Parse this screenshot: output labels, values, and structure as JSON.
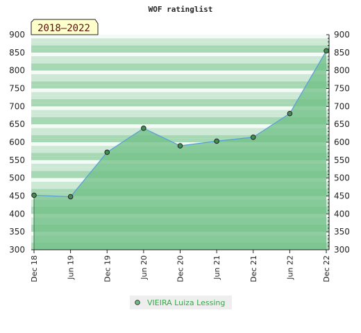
{
  "colors": {
    "line": "#5aa0d8",
    "area": "#6fbf86",
    "band_light": "#f4faf5",
    "band_mid": "#cde9d5",
    "band_dark": "#a7d8b4",
    "marker": "#3f8f53",
    "badge_fill": "#ffffcc",
    "legend_text": "#3aa54a"
  },
  "chart_data": {
    "type": "area",
    "title": "WOF ratinglist",
    "badge": "2018–2022",
    "categories": [
      "Dec 18",
      "Jun 19",
      "Dec 19",
      "Jun 20",
      "Dec 20",
      "Jun 21",
      "Dec 21",
      "Jun 22",
      "Dec 22"
    ],
    "series": [
      {
        "name": "VIEIRA Luiza Lessing",
        "values": [
          452,
          448,
          572,
          639,
          590,
          603,
          614,
          680,
          855
        ]
      }
    ],
    "yticks": [
      300,
      350,
      400,
      450,
      500,
      550,
      600,
      650,
      700,
      750,
      800,
      850,
      900
    ],
    "ylim": [
      300,
      900
    ],
    "grid": false,
    "legend": "bottom"
  }
}
